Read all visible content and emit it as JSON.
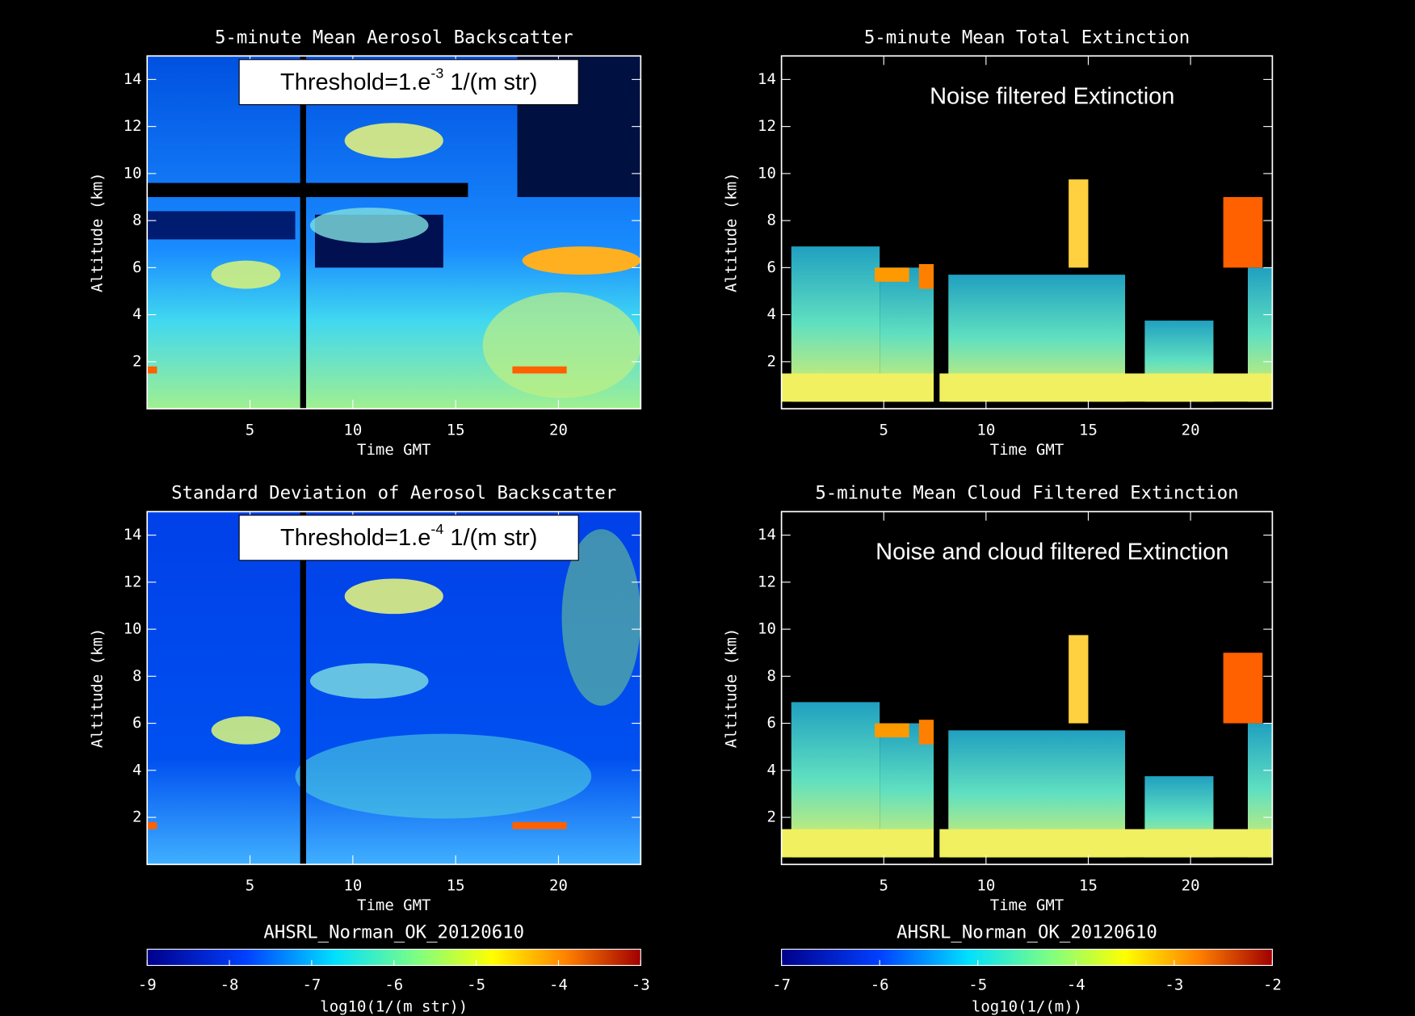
{
  "chart_data": [
    {
      "type": "heatmap",
      "title": "5-minute Mean Aerosol Backscatter",
      "x_label": "Time GMT",
      "y_label": "Altitude (km)",
      "xlim": [
        0,
        24
      ],
      "xticks": [
        5,
        10,
        15,
        20
      ],
      "ylim": [
        0,
        15
      ],
      "yticks": [
        2,
        4,
        6,
        8,
        10,
        12,
        14
      ],
      "annotation": {
        "text": "Threshold=1.e",
        "superscript": "-3",
        "suffix": " 1/(m str)",
        "boxed": true
      }
    },
    {
      "type": "heatmap",
      "title": "5-minute Mean Total Extinction",
      "x_label": "Time GMT",
      "y_label": "Altitude (km)",
      "xlim": [
        0,
        24
      ],
      "xticks": [
        5,
        10,
        15,
        20
      ],
      "ylim": [
        0,
        15
      ],
      "yticks": [
        2,
        4,
        6,
        8,
        10,
        12,
        14
      ],
      "annotation": {
        "text": "Noise filtered Extinction",
        "boxed": false
      }
    },
    {
      "type": "heatmap",
      "title": "Standard Deviation of Aerosol Backscatter",
      "x_label": "Time GMT",
      "y_label": "Altitude (km)",
      "xlim": [
        0,
        24
      ],
      "xticks": [
        5,
        10,
        15,
        20
      ],
      "ylim": [
        0,
        15
      ],
      "yticks": [
        2,
        4,
        6,
        8,
        10,
        12,
        14
      ],
      "annotation": {
        "text": "Threshold=1.e",
        "superscript": "-4",
        "suffix": " 1/(m str)",
        "boxed": true
      },
      "colorbar": {
        "title": "AHSRL_Norman_OK_20120610",
        "label": "log10(1/(m str))",
        "lim": [
          -9,
          -3
        ],
        "ticks": [
          -9,
          -8,
          -7,
          -6,
          -5,
          -4,
          -3
        ]
      }
    },
    {
      "type": "heatmap",
      "title": "5-minute Mean Cloud Filtered Extinction",
      "x_label": "Time GMT",
      "y_label": "Altitude (km)",
      "xlim": [
        0,
        24
      ],
      "xticks": [
        5,
        10,
        15,
        20
      ],
      "ylim": [
        0,
        15
      ],
      "yticks": [
        2,
        4,
        6,
        8,
        10,
        12,
        14
      ],
      "annotation": {
        "text": "Noise and cloud filtered Extinction",
        "boxed": false
      },
      "colorbar": {
        "title": "AHSRL_Norman_OK_20120610",
        "label": "log10(1/(m))",
        "lim": [
          -7,
          -2
        ],
        "ticks": [
          -7,
          -6,
          -5,
          -4,
          -3,
          -2
        ]
      }
    }
  ]
}
